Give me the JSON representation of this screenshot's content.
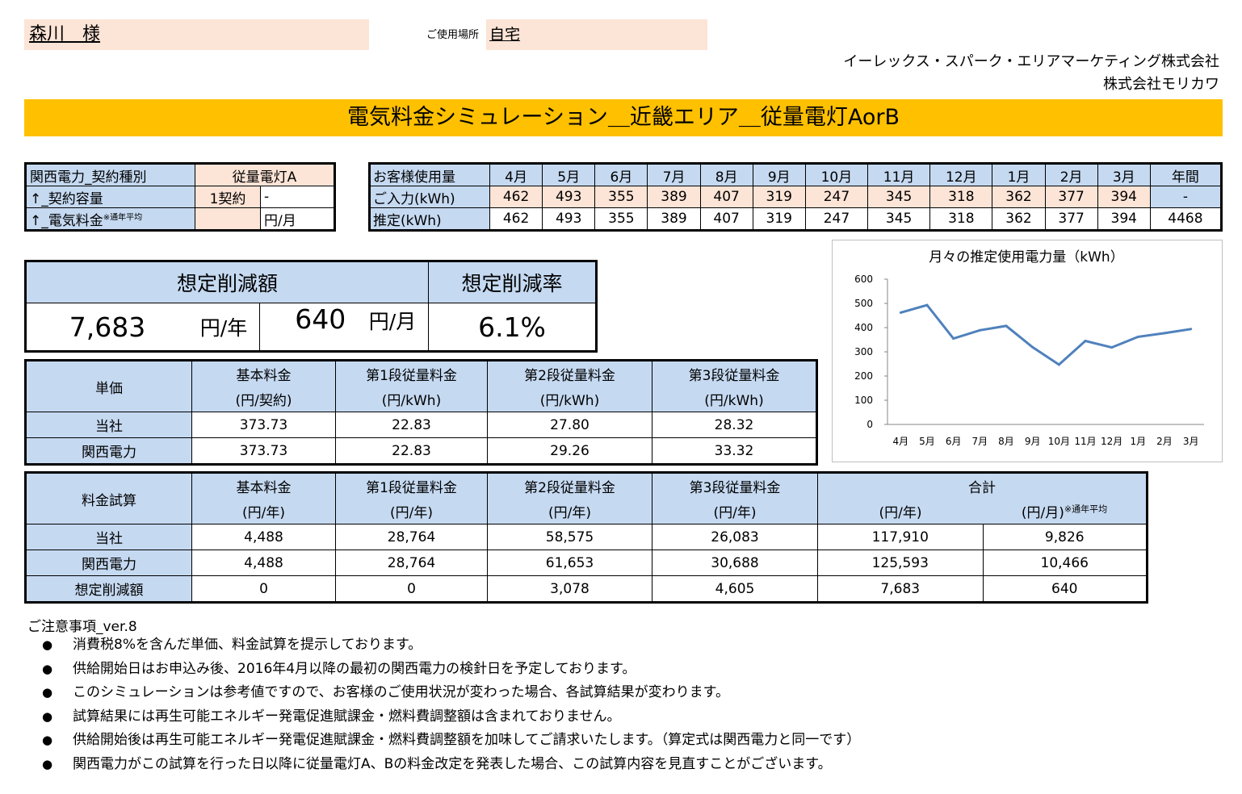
{
  "customer": {
    "name": "森川　様",
    "place_label": "ご使用場所",
    "place": "自宅"
  },
  "companies": [
    "イーレックス・スパーク・エリアマーケティング株式会社",
    "株式会社モリカワ"
  ],
  "title": "電気料金シミュレーション＿近畿エリア＿従量電灯AorB",
  "contract": {
    "type_label": "関西電力_契約種別",
    "type_value": "従量電灯A",
    "capacity_label": "↑_契約容量",
    "capacity_value": "1契約",
    "capacity_extra": "-",
    "fee_label": "↑_電気料金",
    "fee_note": "※通年平均",
    "fee_value": "",
    "fee_unit": "円/月"
  },
  "usage": {
    "header_label": "お客様使用量",
    "months": [
      "4月",
      "5月",
      "6月",
      "7月",
      "8月",
      "9月",
      "10月",
      "11月",
      "12月",
      "1月",
      "2月",
      "3月",
      "年間"
    ],
    "input_label": "ご入力(kWh)",
    "input": [
      "462",
      "493",
      "355",
      "389",
      "407",
      "319",
      "247",
      "345",
      "318",
      "362",
      "377",
      "394",
      "-"
    ],
    "est_label": "推定(kWh)",
    "est": [
      "462",
      "493",
      "355",
      "389",
      "407",
      "319",
      "247",
      "345",
      "318",
      "362",
      "377",
      "394",
      "4468"
    ]
  },
  "reduction": {
    "amount_label": "想定削減額",
    "rate_label": "想定削減率",
    "yearly": "7,683",
    "yearly_unit": "円/年",
    "monthly": "640",
    "monthly_unit": "円/月",
    "rate": "6.1%"
  },
  "unit_price": {
    "title": "単価",
    "cols": [
      {
        "name": "基本料金",
        "unit": "(円/契約)"
      },
      {
        "name": "第1段従量料金",
        "unit": "(円/kWh)"
      },
      {
        "name": "第2段従量料金",
        "unit": "(円/kWh)"
      },
      {
        "name": "第3段従量料金",
        "unit": "(円/kWh)"
      }
    ],
    "rows": [
      {
        "label": "当社",
        "values": [
          "373.73",
          "22.83",
          "27.80",
          "28.32"
        ]
      },
      {
        "label": "関西電力",
        "values": [
          "373.73",
          "22.83",
          "29.26",
          "33.32"
        ]
      }
    ]
  },
  "calc": {
    "title": "料金試算",
    "cols": [
      {
        "name": "基本料金",
        "unit": "(円/年)"
      },
      {
        "name": "第1段従量料金",
        "unit": "(円/年)"
      },
      {
        "name": "第2段従量料金",
        "unit": "(円/年)"
      },
      {
        "name": "第3段従量料金",
        "unit": "(円/年)"
      }
    ],
    "total_label": "合計",
    "total_year_unit": "(円/年)",
    "total_month_unit": "(円/月)",
    "total_month_note": "※通年平均",
    "rows": [
      {
        "label": "当社",
        "values": [
          "4,488",
          "28,764",
          "58,575",
          "26,083",
          "117,910",
          "9,826"
        ]
      },
      {
        "label": "関西電力",
        "values": [
          "4,488",
          "28,764",
          "61,653",
          "30,688",
          "125,593",
          "10,466"
        ]
      },
      {
        "label": "想定削減額",
        "values": [
          "0",
          "0",
          "3,078",
          "4,605",
          "7,683",
          "640"
        ]
      }
    ]
  },
  "chart_data": {
    "type": "line",
    "title": "月々の推定使用電力量（kWh）",
    "categories": [
      "4月",
      "5月",
      "6月",
      "7月",
      "8月",
      "9月",
      "10月",
      "11月",
      "12月",
      "1月",
      "2月",
      "3月"
    ],
    "values": [
      462,
      493,
      355,
      389,
      407,
      319,
      247,
      345,
      318,
      362,
      377,
      394
    ],
    "ylim": [
      0,
      600
    ],
    "yticks": [
      0,
      100,
      200,
      300,
      400,
      500,
      600
    ],
    "grid": false,
    "line_color": "#4f81bd"
  },
  "notes": {
    "title": "ご注意事項_ver.8",
    "bullet": "●",
    "items": [
      "消費税8%を含んだ単価、料金試算を提示しております。",
      "供給開始日はお申込み後、2016年4月以降の最初の関西電力の検針日を予定しております。",
      "このシミュレーションは参考値ですので、お客様のご使用状況が変わった場合、各試算結果が変わります。",
      "試算結果には再生可能エネルギー発電促進賦課金・燃料費調整額は含まれておりません。",
      "供給開始後は再生可能エネルギー発電促進賦課金・燃料費調整額を加味してご請求いたします。（算定式は関西電力と同一です）",
      "関西電力がこの試算を行った日以降に従量電灯A、Bの料金改定を発表した場合、この試算内容を見直すことがございます。"
    ]
  }
}
